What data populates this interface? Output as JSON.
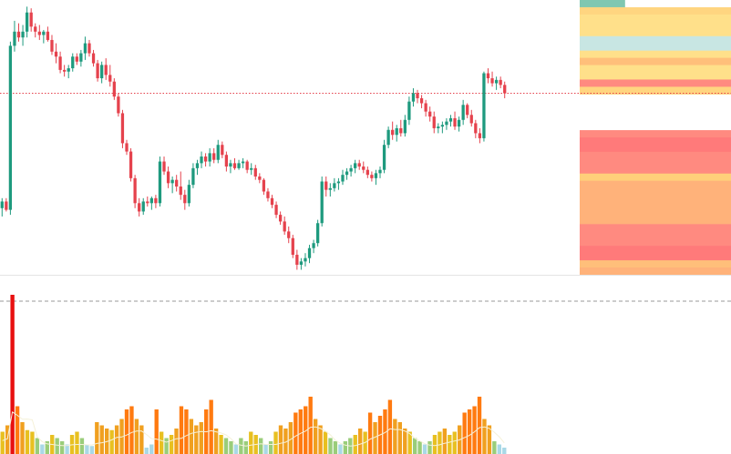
{
  "chart_data": [
    {
      "type": "candlestick",
      "panel": "price",
      "colors": {
        "up": "#1e9a7e",
        "down": "#e5424d",
        "last_price_line": "#e5424d"
      },
      "last_price_line": true,
      "ylim": [
        -30,
        300
      ],
      "candles": [
        {
          "o": 50,
          "h": 62,
          "l": 40,
          "c": 58
        },
        {
          "o": 58,
          "h": 62,
          "l": 46,
          "c": 48
        },
        {
          "o": 48,
          "h": 250,
          "l": 42,
          "c": 245
        },
        {
          "o": 245,
          "h": 275,
          "l": 238,
          "c": 262
        },
        {
          "o": 262,
          "h": 272,
          "l": 250,
          "c": 255
        },
        {
          "o": 255,
          "h": 270,
          "l": 245,
          "c": 262
        },
        {
          "o": 262,
          "h": 292,
          "l": 255,
          "c": 285
        },
        {
          "o": 285,
          "h": 290,
          "l": 262,
          "c": 268
        },
        {
          "o": 268,
          "h": 272,
          "l": 255,
          "c": 262
        },
        {
          "o": 262,
          "h": 270,
          "l": 252,
          "c": 258
        },
        {
          "o": 258,
          "h": 264,
          "l": 248,
          "c": 262
        },
        {
          "o": 262,
          "h": 268,
          "l": 250,
          "c": 252
        },
        {
          "o": 252,
          "h": 258,
          "l": 234,
          "c": 238
        },
        {
          "o": 238,
          "h": 248,
          "l": 224,
          "c": 232
        },
        {
          "o": 232,
          "h": 238,
          "l": 212,
          "c": 216
        },
        {
          "o": 216,
          "h": 222,
          "l": 208,
          "c": 214
        },
        {
          "o": 214,
          "h": 222,
          "l": 206,
          "c": 218
        },
        {
          "o": 218,
          "h": 236,
          "l": 214,
          "c": 232
        },
        {
          "o": 232,
          "h": 236,
          "l": 222,
          "c": 226
        },
        {
          "o": 226,
          "h": 240,
          "l": 220,
          "c": 236
        },
        {
          "o": 236,
          "h": 256,
          "l": 228,
          "c": 248
        },
        {
          "o": 248,
          "h": 252,
          "l": 232,
          "c": 236
        },
        {
          "o": 236,
          "h": 240,
          "l": 220,
          "c": 224
        },
        {
          "o": 224,
          "h": 228,
          "l": 202,
          "c": 206
        },
        {
          "o": 206,
          "h": 226,
          "l": 200,
          "c": 222
        },
        {
          "o": 222,
          "h": 230,
          "l": 204,
          "c": 210
        },
        {
          "o": 210,
          "h": 222,
          "l": 196,
          "c": 202
        },
        {
          "o": 202,
          "h": 206,
          "l": 180,
          "c": 184
        },
        {
          "o": 184,
          "h": 188,
          "l": 160,
          "c": 164
        },
        {
          "o": 164,
          "h": 168,
          "l": 122,
          "c": 128
        },
        {
          "o": 128,
          "h": 132,
          "l": 114,
          "c": 118
        },
        {
          "o": 118,
          "h": 122,
          "l": 82,
          "c": 86
        },
        {
          "o": 86,
          "h": 90,
          "l": 50,
          "c": 56
        },
        {
          "o": 56,
          "h": 62,
          "l": 40,
          "c": 46
        },
        {
          "o": 46,
          "h": 62,
          "l": 42,
          "c": 58
        },
        {
          "o": 58,
          "h": 64,
          "l": 52,
          "c": 56
        },
        {
          "o": 56,
          "h": 64,
          "l": 48,
          "c": 62
        },
        {
          "o": 62,
          "h": 66,
          "l": 50,
          "c": 56
        },
        {
          "o": 56,
          "h": 112,
          "l": 52,
          "c": 106
        },
        {
          "o": 106,
          "h": 112,
          "l": 90,
          "c": 94
        },
        {
          "o": 94,
          "h": 100,
          "l": 74,
          "c": 80
        },
        {
          "o": 80,
          "h": 88,
          "l": 68,
          "c": 84
        },
        {
          "o": 84,
          "h": 90,
          "l": 70,
          "c": 76
        },
        {
          "o": 76,
          "h": 94,
          "l": 60,
          "c": 66
        },
        {
          "o": 66,
          "h": 72,
          "l": 48,
          "c": 56
        },
        {
          "o": 56,
          "h": 84,
          "l": 52,
          "c": 78
        },
        {
          "o": 78,
          "h": 104,
          "l": 74,
          "c": 98
        },
        {
          "o": 98,
          "h": 108,
          "l": 90,
          "c": 104
        },
        {
          "o": 104,
          "h": 118,
          "l": 98,
          "c": 112
        },
        {
          "o": 112,
          "h": 116,
          "l": 100,
          "c": 106
        },
        {
          "o": 106,
          "h": 122,
          "l": 100,
          "c": 116
        },
        {
          "o": 116,
          "h": 122,
          "l": 104,
          "c": 108
        },
        {
          "o": 108,
          "h": 132,
          "l": 104,
          "c": 126
        },
        {
          "o": 126,
          "h": 130,
          "l": 110,
          "c": 114
        },
        {
          "o": 114,
          "h": 118,
          "l": 94,
          "c": 100
        },
        {
          "o": 100,
          "h": 108,
          "l": 92,
          "c": 104
        },
        {
          "o": 104,
          "h": 110,
          "l": 96,
          "c": 98
        },
        {
          "o": 98,
          "h": 108,
          "l": 96,
          "c": 104
        },
        {
          "o": 104,
          "h": 110,
          "l": 98,
          "c": 106
        },
        {
          "o": 106,
          "h": 108,
          "l": 92,
          "c": 96
        },
        {
          "o": 96,
          "h": 104,
          "l": 90,
          "c": 98
        },
        {
          "o": 98,
          "h": 102,
          "l": 84,
          "c": 88
        },
        {
          "o": 88,
          "h": 92,
          "l": 80,
          "c": 84
        },
        {
          "o": 84,
          "h": 86,
          "l": 66,
          "c": 70
        },
        {
          "o": 70,
          "h": 74,
          "l": 58,
          "c": 62
        },
        {
          "o": 62,
          "h": 66,
          "l": 50,
          "c": 54
        },
        {
          "o": 54,
          "h": 58,
          "l": 38,
          "c": 42
        },
        {
          "o": 42,
          "h": 46,
          "l": 30,
          "c": 34
        },
        {
          "o": 34,
          "h": 40,
          "l": 18,
          "c": 22
        },
        {
          "o": 22,
          "h": 28,
          "l": 8,
          "c": 14
        },
        {
          "o": 14,
          "h": 18,
          "l": -10,
          "c": -6
        },
        {
          "o": -6,
          "h": 0,
          "l": -24,
          "c": -18
        },
        {
          "o": -18,
          "h": -10,
          "l": -24,
          "c": -14
        },
        {
          "o": -14,
          "h": -4,
          "l": -20,
          "c": -10
        },
        {
          "o": -10,
          "h": 6,
          "l": -16,
          "c": 2
        },
        {
          "o": 2,
          "h": 12,
          "l": -4,
          "c": 8
        },
        {
          "o": 8,
          "h": 36,
          "l": 4,
          "c": 32
        },
        {
          "o": 32,
          "h": 88,
          "l": 28,
          "c": 82
        },
        {
          "o": 82,
          "h": 88,
          "l": 64,
          "c": 72
        },
        {
          "o": 72,
          "h": 80,
          "l": 64,
          "c": 74
        },
        {
          "o": 74,
          "h": 86,
          "l": 70,
          "c": 80
        },
        {
          "o": 80,
          "h": 86,
          "l": 72,
          "c": 82
        },
        {
          "o": 82,
          "h": 96,
          "l": 78,
          "c": 90
        },
        {
          "o": 90,
          "h": 98,
          "l": 84,
          "c": 94
        },
        {
          "o": 94,
          "h": 102,
          "l": 88,
          "c": 98
        },
        {
          "o": 98,
          "h": 108,
          "l": 92,
          "c": 104
        },
        {
          "o": 104,
          "h": 108,
          "l": 96,
          "c": 100
        },
        {
          "o": 100,
          "h": 106,
          "l": 92,
          "c": 96
        },
        {
          "o": 96,
          "h": 100,
          "l": 86,
          "c": 90
        },
        {
          "o": 90,
          "h": 94,
          "l": 82,
          "c": 86
        },
        {
          "o": 86,
          "h": 96,
          "l": 78,
          "c": 92
        },
        {
          "o": 92,
          "h": 100,
          "l": 86,
          "c": 96
        },
        {
          "o": 96,
          "h": 132,
          "l": 92,
          "c": 126
        },
        {
          "o": 126,
          "h": 148,
          "l": 122,
          "c": 144
        },
        {
          "o": 144,
          "h": 154,
          "l": 132,
          "c": 138
        },
        {
          "o": 138,
          "h": 150,
          "l": 130,
          "c": 146
        },
        {
          "o": 146,
          "h": 156,
          "l": 136,
          "c": 140
        },
        {
          "o": 140,
          "h": 162,
          "l": 136,
          "c": 156
        },
        {
          "o": 156,
          "h": 184,
          "l": 150,
          "c": 178
        },
        {
          "o": 178,
          "h": 194,
          "l": 172,
          "c": 188
        },
        {
          "o": 188,
          "h": 192,
          "l": 176,
          "c": 182
        },
        {
          "o": 182,
          "h": 186,
          "l": 170,
          "c": 176
        },
        {
          "o": 176,
          "h": 180,
          "l": 160,
          "c": 166
        },
        {
          "o": 166,
          "h": 172,
          "l": 154,
          "c": 160
        },
        {
          "o": 160,
          "h": 166,
          "l": 140,
          "c": 146
        },
        {
          "o": 146,
          "h": 152,
          "l": 140,
          "c": 148
        },
        {
          "o": 148,
          "h": 154,
          "l": 140,
          "c": 150
        },
        {
          "o": 150,
          "h": 158,
          "l": 144,
          "c": 154
        },
        {
          "o": 154,
          "h": 162,
          "l": 148,
          "c": 158
        },
        {
          "o": 158,
          "h": 166,
          "l": 144,
          "c": 148
        },
        {
          "o": 148,
          "h": 160,
          "l": 142,
          "c": 156
        },
        {
          "o": 156,
          "h": 180,
          "l": 150,
          "c": 174
        },
        {
          "o": 174,
          "h": 176,
          "l": 158,
          "c": 162
        },
        {
          "o": 162,
          "h": 168,
          "l": 148,
          "c": 152
        },
        {
          "o": 152,
          "h": 156,
          "l": 134,
          "c": 140
        },
        {
          "o": 140,
          "h": 146,
          "l": 128,
          "c": 134
        },
        {
          "o": 134,
          "h": 214,
          "l": 130,
          "c": 212
        },
        {
          "o": 212,
          "h": 218,
          "l": 200,
          "c": 206
        },
        {
          "o": 206,
          "h": 214,
          "l": 196,
          "c": 200
        },
        {
          "o": 200,
          "h": 208,
          "l": 192,
          "c": 204
        },
        {
          "o": 204,
          "h": 208,
          "l": 194,
          "c": 198
        },
        {
          "o": 198,
          "h": 202,
          "l": 182,
          "c": 188
        }
      ]
    },
    {
      "type": "volume_profile",
      "panel": "price",
      "side": "right",
      "colors": [
        "#7fc7b1",
        "#ffd580",
        "#ffe08a",
        "#c8e6e3",
        "#ffbf7a",
        "#ff8a80",
        "#ffb27a",
        "#ffcf7a",
        "#ff7a7a"
      ],
      "bands": [
        {
          "v": 0.3,
          "c": 0
        },
        {
          "v": 1,
          "c": 1
        },
        {
          "v": 1,
          "c": 2
        },
        {
          "v": 1,
          "c": 2
        },
        {
          "v": 1,
          "c": 2
        },
        {
          "v": 1,
          "c": 3
        },
        {
          "v": 1,
          "c": 3
        },
        {
          "v": 1,
          "c": 2
        },
        {
          "v": 1,
          "c": 4
        },
        {
          "v": 1,
          "c": 2
        },
        {
          "v": 1,
          "c": 2
        },
        {
          "v": 1,
          "c": 5
        },
        {
          "v": 1,
          "c": 1
        },
        {
          "v": 0,
          "c": 1
        },
        {
          "v": 0,
          "c": 1
        },
        {
          "v": 0,
          "c": 1
        },
        {
          "v": 0,
          "c": 1
        },
        {
          "v": 0,
          "c": 1
        },
        {
          "v": 1,
          "c": 5
        },
        {
          "v": 1,
          "c": 8
        },
        {
          "v": 1,
          "c": 8
        },
        {
          "v": 1,
          "c": 5
        },
        {
          "v": 1,
          "c": 5
        },
        {
          "v": 1,
          "c": 5
        },
        {
          "v": 1,
          "c": 7
        },
        {
          "v": 1,
          "c": 6
        },
        {
          "v": 1,
          "c": 6
        },
        {
          "v": 1,
          "c": 6
        },
        {
          "v": 1,
          "c": 6
        },
        {
          "v": 1,
          "c": 6
        },
        {
          "v": 1,
          "c": 6
        },
        {
          "v": 1,
          "c": 5
        },
        {
          "v": 1,
          "c": 5
        },
        {
          "v": 1,
          "c": 5
        },
        {
          "v": 1,
          "c": 8
        },
        {
          "v": 1,
          "c": 8
        },
        {
          "v": 1,
          "c": 4
        },
        {
          "v": 1,
          "c": 6
        }
      ]
    },
    {
      "type": "bar",
      "panel": "volume",
      "reference_line": "dashed",
      "ma_color": "#f5f1d8",
      "palette": [
        "#a9d8e6",
        "#9acd7a",
        "#e8c020",
        "#f0a020",
        "#ff7a10",
        "#e81010"
      ],
      "ylim": [
        0,
        100
      ],
      "values": [
        14,
        18,
        100,
        30,
        20,
        15,
        14,
        10,
        6,
        8,
        12,
        10,
        8,
        6,
        12,
        14,
        10,
        6,
        5,
        20,
        18,
        16,
        15,
        18,
        22,
        28,
        30,
        22,
        18,
        4,
        6,
        28,
        14,
        10,
        12,
        16,
        30,
        28,
        22,
        18,
        20,
        28,
        34,
        16,
        12,
        10,
        8,
        6,
        10,
        8,
        14,
        12,
        10,
        6,
        8,
        14,
        18,
        16,
        20,
        26,
        28,
        30,
        36,
        22,
        18,
        14,
        10,
        8,
        6,
        8,
        10,
        12,
        16,
        14,
        26,
        20,
        24,
        28,
        34,
        22,
        20,
        16,
        14,
        10,
        8,
        6,
        8,
        12,
        14,
        16,
        12,
        14,
        18,
        26,
        28,
        30,
        36,
        22,
        18,
        8,
        6,
        4
      ]
    }
  ]
}
